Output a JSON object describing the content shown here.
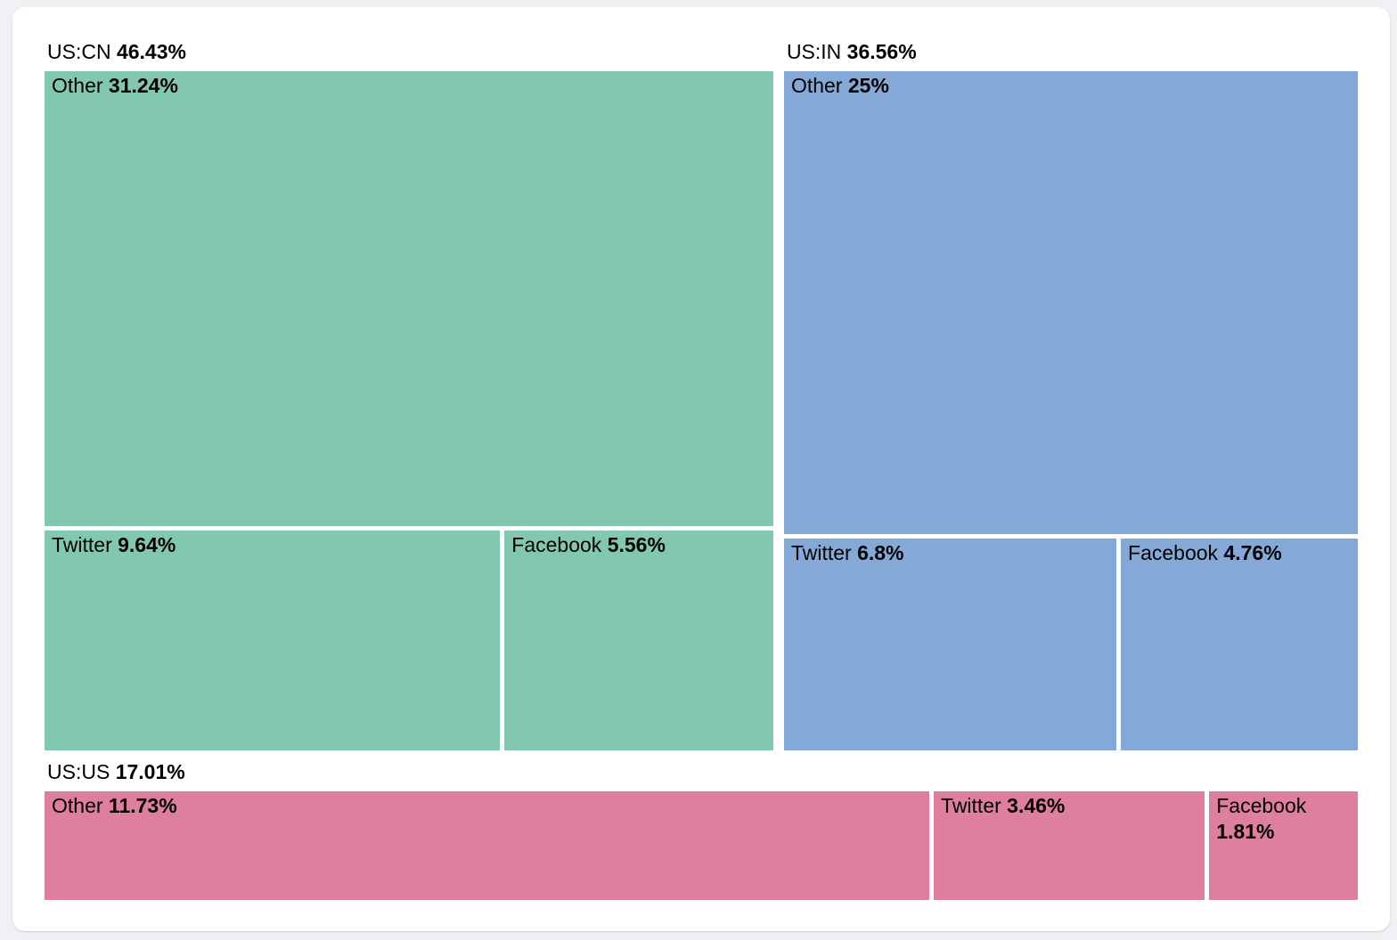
{
  "colors": {
    "background": "#f0f1f4",
    "card": "#ffffff",
    "text": "#000000",
    "group_us_cn": "#81c8ae",
    "group_us_in": "#84a9d6",
    "group_us_us": "#df7f9e"
  },
  "chart_data": {
    "type": "treemap",
    "unit": "%",
    "legend": "none",
    "groups": [
      {
        "label": "US:CN",
        "value": 46.43,
        "value_label": "46.43%",
        "color": "#81c8ae",
        "children": [
          {
            "label": "Other",
            "value": 31.24,
            "value_label": "31.24%"
          },
          {
            "label": "Twitter",
            "value": 9.64,
            "value_label": "9.64%"
          },
          {
            "label": "Facebook",
            "value": 5.56,
            "value_label": "5.56%"
          }
        ]
      },
      {
        "label": "US:IN",
        "value": 36.56,
        "value_label": "36.56%",
        "color": "#84a9d6",
        "children": [
          {
            "label": "Other",
            "value": 25,
            "value_label": "25%"
          },
          {
            "label": "Twitter",
            "value": 6.8,
            "value_label": "6.8%"
          },
          {
            "label": "Facebook",
            "value": 4.76,
            "value_label": "4.76%"
          }
        ]
      },
      {
        "label": "US:US",
        "value": 17.01,
        "value_label": "17.01%",
        "color": "#df7f9e",
        "children": [
          {
            "label": "Other",
            "value": 11.73,
            "value_label": "11.73%"
          },
          {
            "label": "Twitter",
            "value": 3.46,
            "value_label": "3.46%"
          },
          {
            "label": "Facebook",
            "value": 1.81,
            "value_label": "1.81%"
          }
        ]
      }
    ]
  }
}
